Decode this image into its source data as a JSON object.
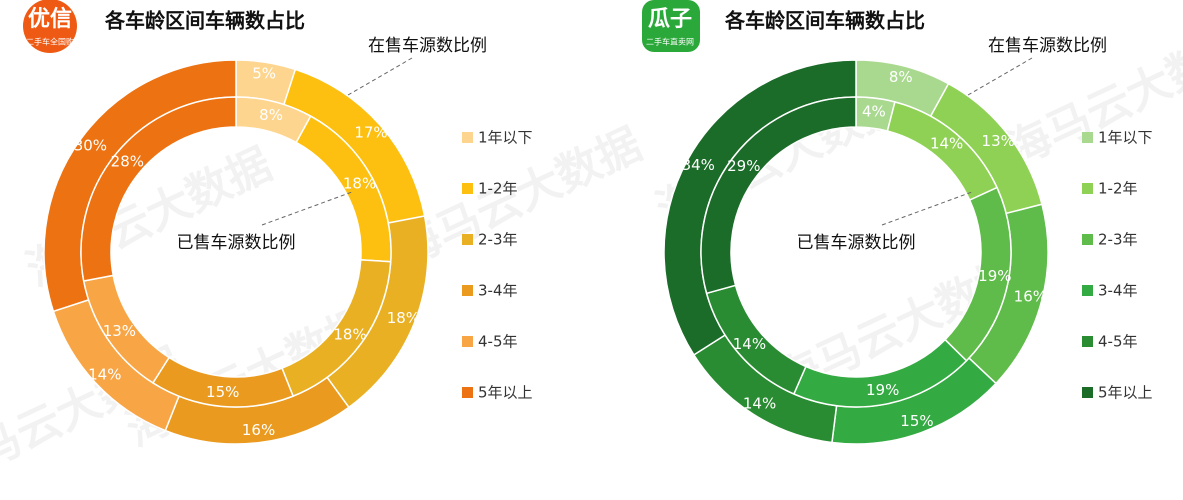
{
  "watermark": "海马云大数据",
  "chart_data": [
    {
      "type": "pie",
      "title": "各车龄区间车辆数占比",
      "logo": "优信",
      "logo_sub": "二手车全国购",
      "logo_color": "#ee5a14",
      "categories": [
        "1年以下",
        "1-2年",
        "2-3年",
        "3-4年",
        "4-5年",
        "5年以上"
      ],
      "colors": [
        "#fdd58e",
        "#fdc010",
        "#e9b024",
        "#ea9a1e",
        "#f8a545",
        "#ec7212"
      ],
      "series": [
        {
          "name": "在售车源数比例",
          "values": [
            5,
            17,
            18,
            16,
            14,
            30
          ],
          "value_labels": [
            "5%",
            "17%",
            "18%",
            "16%",
            "14%",
            "30%"
          ]
        },
        {
          "name": "已售车源数比例",
          "values": [
            8,
            18,
            18,
            15,
            13,
            28
          ],
          "value_labels": [
            "8%",
            "18%",
            "18%",
            "15%",
            "13%",
            "28%"
          ]
        }
      ]
    },
    {
      "type": "pie",
      "title": "各车龄区间车辆数占比",
      "logo": "瓜子",
      "logo_sub": "二手车直卖网",
      "logo_color": "#2aa83a",
      "categories": [
        "1年以下",
        "1-2年",
        "2-3年",
        "3-4年",
        "4-5年",
        "5年以上"
      ],
      "colors": [
        "#a9d98f",
        "#8fd154",
        "#5fbb4a",
        "#33aa42",
        "#2a8c32",
        "#1b6b29"
      ],
      "series": [
        {
          "name": "在售车源数比例",
          "values": [
            8,
            13,
            16,
            15,
            14,
            34
          ],
          "value_labels": [
            "8%",
            "13%",
            "16%",
            "15%",
            "14%",
            "34%"
          ]
        },
        {
          "name": "已售车源数比例",
          "values": [
            4,
            14,
            19,
            19,
            14,
            29
          ],
          "value_labels": [
            "4%",
            "14%",
            "19%",
            "19%",
            "14%",
            "29%"
          ]
        }
      ]
    }
  ]
}
